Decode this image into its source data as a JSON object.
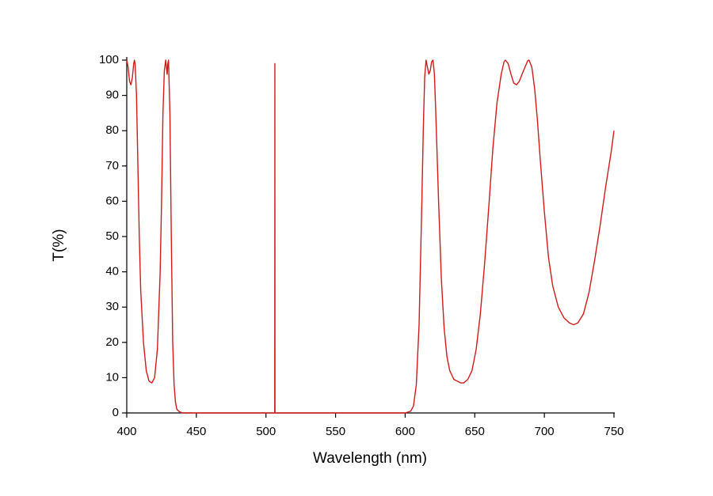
{
  "chart_data": {
    "type": "line",
    "x_label": "Wavelength (nm)",
    "y_label": "T(%)",
    "xlim": [
      400,
      750
    ],
    "ylim": [
      0,
      100
    ],
    "xticks": [
      400,
      450,
      500,
      550,
      600,
      650,
      700,
      750
    ],
    "yticks": [
      0,
      10,
      20,
      30,
      40,
      50,
      60,
      70,
      80,
      90,
      100
    ],
    "x": [
      400,
      401,
      402,
      403,
      404,
      405,
      405.5,
      406,
      407,
      408,
      409,
      410,
      412,
      414,
      416,
      418,
      420,
      422,
      424,
      425,
      426,
      427,
      428,
      428.5,
      429,
      429.5,
      430,
      431,
      432,
      433,
      434,
      435,
      436,
      438,
      440,
      500,
      506.3,
      506.4,
      506.5,
      600,
      604,
      606,
      608,
      610,
      612,
      613,
      614,
      615,
      616,
      617,
      618,
      619,
      620,
      621,
      622,
      624,
      626,
      628,
      630,
      632,
      635,
      640,
      642,
      645,
      648,
      651,
      654,
      657,
      660,
      663,
      666,
      669,
      671,
      672,
      674,
      676,
      678,
      680,
      682,
      685,
      688,
      689,
      691,
      693,
      695,
      697,
      700,
      703,
      706,
      710,
      714,
      718,
      721,
      724,
      728,
      732,
      736,
      740,
      744,
      748,
      750
    ],
    "series": [
      {
        "color": "#d11a1a",
        "values": [
          100,
          98,
          94,
          93,
          95,
          99,
          100,
          99,
          90,
          70,
          50,
          35,
          20,
          12,
          9,
          8.5,
          10,
          18,
          40,
          60,
          85,
          97,
          100,
          98,
          96,
          99,
          100,
          85,
          50,
          20,
          8,
          3,
          1,
          0.3,
          0,
          0,
          0,
          99,
          0,
          0,
          0.5,
          2,
          8,
          25,
          60,
          80,
          95,
          100,
          98,
          96,
          97,
          99.5,
          100,
          96,
          85,
          60,
          38,
          24,
          16,
          12,
          9.5,
          8.5,
          8.5,
          9.5,
          12,
          18,
          28,
          42,
          58,
          75,
          88,
          96,
          99.5,
          100,
          99,
          96,
          93.5,
          93,
          94,
          97,
          99.8,
          100,
          98,
          92,
          83,
          72,
          57,
          44,
          36,
          30,
          27,
          25.5,
          25,
          25.5,
          28,
          34,
          43,
          53,
          64,
          74,
          80
        ]
      }
    ]
  }
}
